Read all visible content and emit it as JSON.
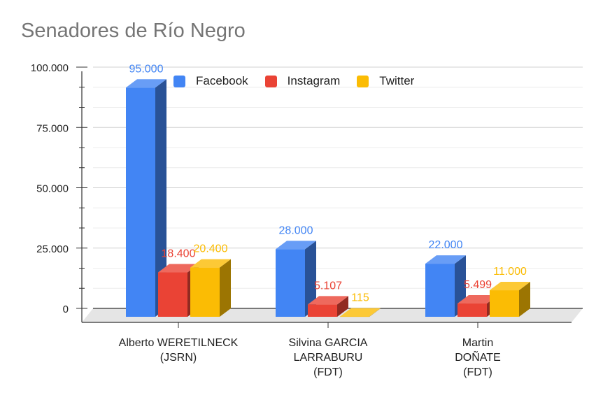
{
  "chart_data": {
    "type": "bar",
    "title": "Senadores de Río Negro",
    "xlabel": "",
    "ylabel": "",
    "ylim": [
      0,
      100000
    ],
    "yticks": [
      {
        "value": 0,
        "label": "0"
      },
      {
        "value": 25000,
        "label": "25.000"
      },
      {
        "value": 50000,
        "label": "50.000"
      },
      {
        "value": 75000,
        "label": "75.000"
      },
      {
        "value": 100000,
        "label": "100.000"
      }
    ],
    "categories": [
      [
        "Alberto WERETILNECK",
        "(JSRN)"
      ],
      [
        "Silvina GARCIA",
        "LARRABURU",
        "(FDT)"
      ],
      [
        "Martin",
        "DOÑATE",
        "(FDT)"
      ]
    ],
    "series": [
      {
        "name": "Facebook",
        "color": "#4285f4",
        "values": [
          95000,
          28000,
          22000
        ],
        "labels": [
          "95.000",
          "28.000",
          "22.000"
        ]
      },
      {
        "name": "Instagram",
        "color": "#ea4335",
        "values": [
          18400,
          5107,
          5499
        ],
        "labels": [
          "18.400",
          "5.107",
          "5.499"
        ]
      },
      {
        "name": "Twitter",
        "color": "#fbbc04",
        "values": [
          20400,
          115,
          11000
        ],
        "labels": [
          "20.400",
          "115",
          "11.000"
        ]
      }
    ],
    "legend_position": "top",
    "grid": true,
    "style": "3d"
  }
}
